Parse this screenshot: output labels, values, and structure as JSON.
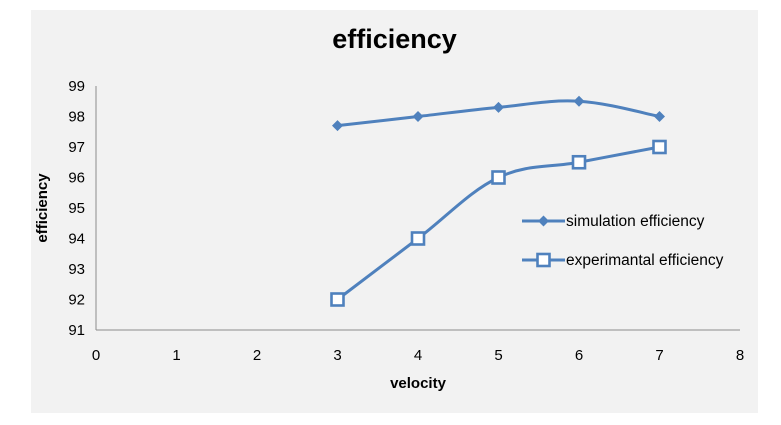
{
  "chart_data": {
    "type": "line",
    "title": "efficiency",
    "xlabel": "velocity",
    "ylabel": "efficiency",
    "xlim": [
      0,
      8
    ],
    "ylim": [
      91,
      99
    ],
    "xticks": [
      0,
      1,
      2,
      3,
      4,
      5,
      6,
      7,
      8
    ],
    "yticks": [
      91,
      92,
      93,
      94,
      95,
      96,
      97,
      98,
      99
    ],
    "grid": false,
    "legend_position": "right",
    "series": [
      {
        "name": "simulation efficiency",
        "marker": "diamond",
        "color": "#4f81bd",
        "x": [
          3,
          4,
          5,
          6,
          7
        ],
        "y": [
          97.7,
          98.0,
          98.3,
          98.5,
          98.0
        ]
      },
      {
        "name": "experimantal efficiency",
        "marker": "hollow-square",
        "color": "#4f81bd",
        "x": [
          3,
          4,
          5,
          6,
          7
        ],
        "y": [
          92.0,
          94.0,
          96.0,
          96.5,
          97.0
        ]
      }
    ]
  }
}
